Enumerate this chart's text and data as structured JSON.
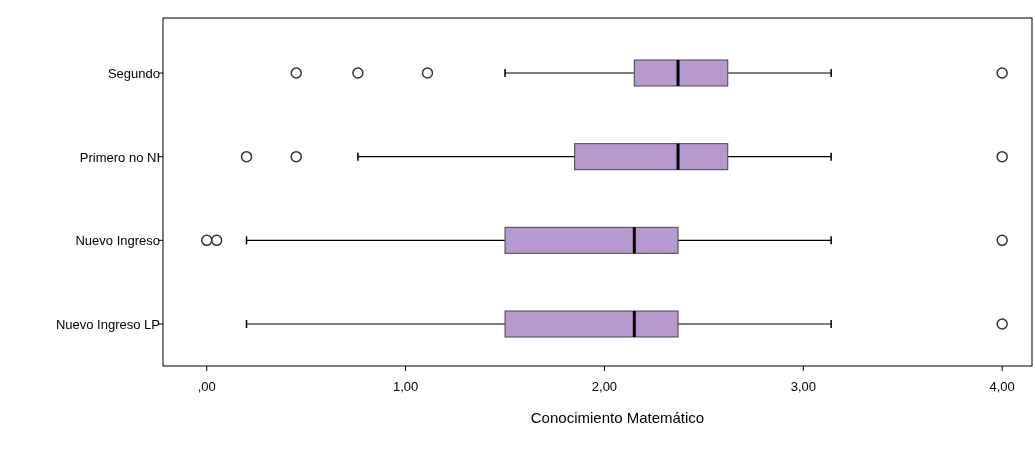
{
  "chart_data": {
    "type": "box",
    "orientation": "horizontal",
    "xlabel": "Conocimiento Matemático",
    "categories": [
      "Segundo",
      "Primero no NI",
      "Nuevo Ingreso",
      "Nuevo Ingreso LP"
    ],
    "series": [
      {
        "color": "#b899cf",
        "boxes": [
          {
            "low": 1.5,
            "q1": 2.15,
            "median": 2.37,
            "q3": 2.62,
            "high": 3.14,
            "outliers": [
              0.45,
              0.76,
              1.11,
              4.0
            ]
          },
          {
            "low": 0.76,
            "q1": 1.85,
            "median": 2.37,
            "q3": 2.62,
            "high": 3.14,
            "outliers": [
              0.2,
              0.45,
              4.0
            ]
          },
          {
            "low": 0.2,
            "q1": 1.5,
            "median": 2.15,
            "q3": 2.37,
            "high": 3.14,
            "outliers": [
              0.0,
              0.05,
              4.0
            ]
          },
          {
            "low": 0.2,
            "q1": 1.5,
            "median": 2.15,
            "q3": 2.37,
            "high": 3.14,
            "outliers": [
              4.0
            ]
          }
        ]
      }
    ],
    "xlim": [
      -0.22,
      4.15
    ],
    "xticks": [
      {
        "value": 0,
        "label": ",00"
      },
      {
        "value": 1,
        "label": "1,00"
      },
      {
        "value": 2,
        "label": "2,00"
      },
      {
        "value": 3,
        "label": "3,00"
      },
      {
        "value": 4,
        "label": "4,00"
      }
    ],
    "grid": false
  }
}
